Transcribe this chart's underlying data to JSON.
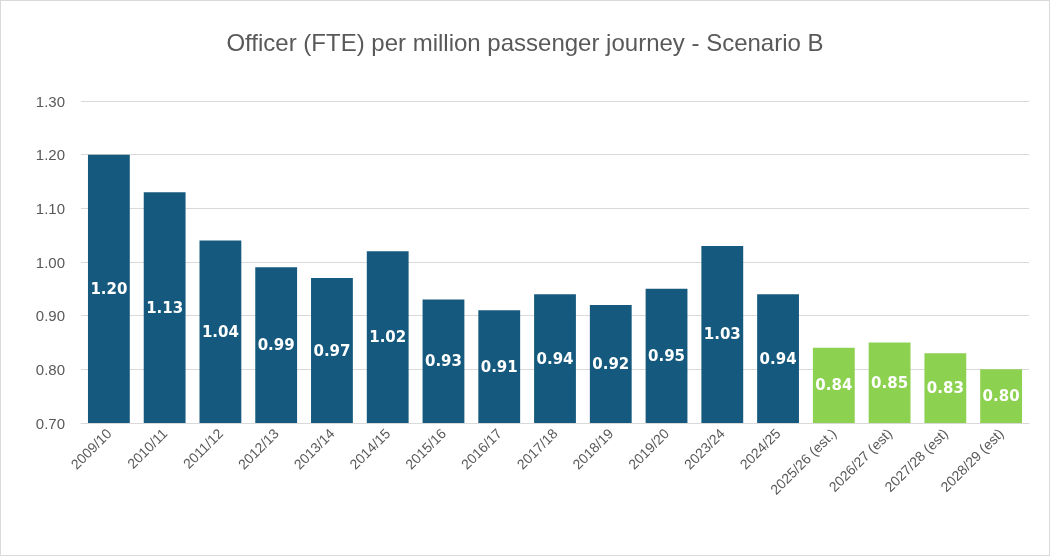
{
  "chart_data": {
    "type": "bar",
    "title": "Officer (FTE) per million passenger journey - Scenario B",
    "categories": [
      "2009/10",
      "2010/11",
      "2011/12",
      "2012/13",
      "2013/14",
      "2014/15",
      "2015/16",
      "2016/17",
      "2017/18",
      "2018/19",
      "2019/20",
      "2023/24",
      "2024/25",
      "2025/26 (est.)",
      "2026/27 (est)",
      "2027/28 (est)",
      "2028/29 (est)"
    ],
    "values": [
      1.2,
      1.13,
      1.04,
      0.99,
      0.97,
      1.02,
      0.93,
      0.91,
      0.94,
      0.92,
      0.95,
      1.03,
      0.94,
      0.84,
      0.85,
      0.83,
      0.8
    ],
    "value_labels": [
      "1.20",
      "1.13",
      "1.04",
      "0.99",
      "0.97",
      "1.02",
      "0.93",
      "0.91",
      "0.94",
      "0.92",
      "0.95",
      "1.03",
      "0.94",
      "0.84",
      "0.85",
      "0.83",
      "0.80"
    ],
    "colors": [
      "#155a7e",
      "#155a7e",
      "#155a7e",
      "#155a7e",
      "#155a7e",
      "#155a7e",
      "#155a7e",
      "#155a7e",
      "#155a7e",
      "#155a7e",
      "#155a7e",
      "#155a7e",
      "#155a7e",
      "#8cd150",
      "#8cd150",
      "#8cd150",
      "#8cd150"
    ],
    "ylim": [
      0.7,
      1.3
    ],
    "yticks": [
      {
        "value": 0.7,
        "label": "0.70"
      },
      {
        "value": 0.8,
        "label": "0.80"
      },
      {
        "value": 0.9,
        "label": "0.90"
      },
      {
        "value": 1.0,
        "label": "1.00"
      },
      {
        "value": 1.1,
        "label": "1.10"
      },
      {
        "value": 1.2,
        "label": "1.20"
      },
      {
        "value": 1.3,
        "label": "1.30"
      }
    ],
    "grid": "y"
  }
}
